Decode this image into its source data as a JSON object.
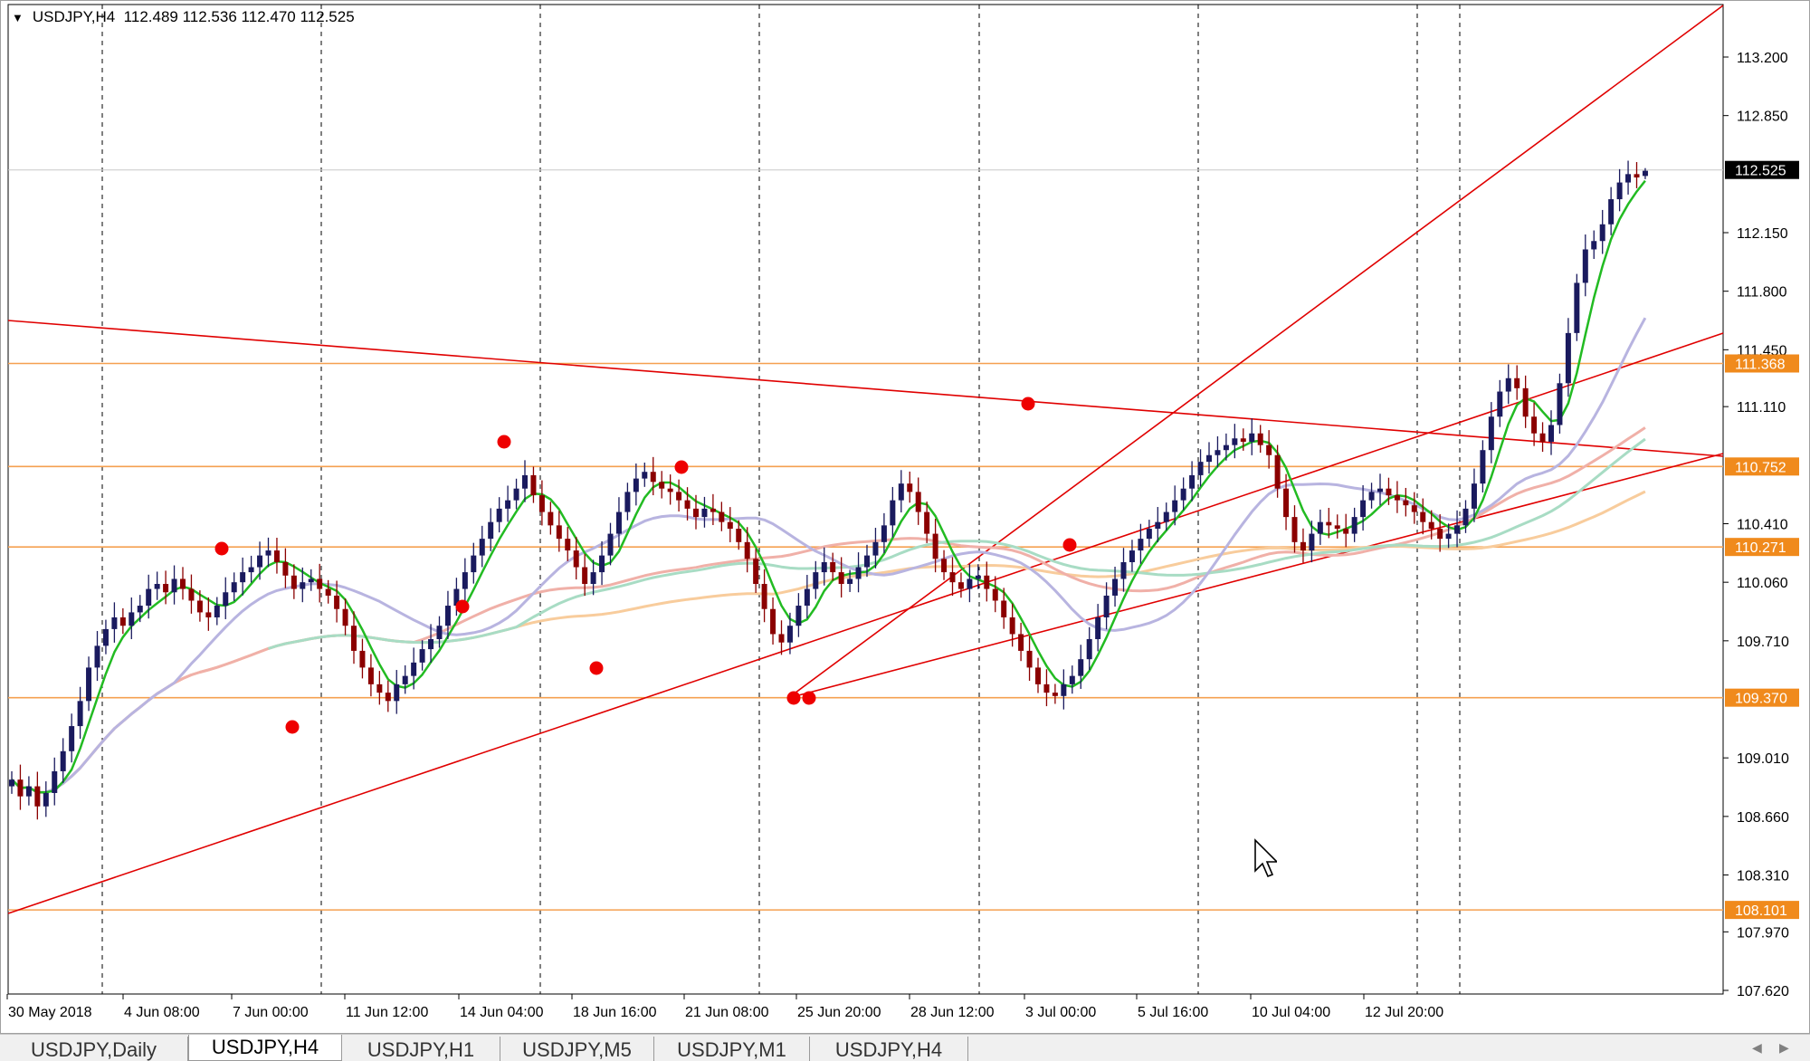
{
  "header": {
    "caret": "▼",
    "symbol": "USDJPY,H4",
    "open": "112.489",
    "high": "112.536",
    "low": "112.470",
    "close": "112.525"
  },
  "price_axis": {
    "ticks": [
      "113.200",
      "112.850",
      "112.150",
      "111.800",
      "111.450",
      "111.110",
      "110.410",
      "110.060",
      "109.710",
      "109.010",
      "108.660",
      "108.310",
      "107.970",
      "107.620"
    ],
    "current_price": "112.525",
    "level_labels": [
      "111.368",
      "110.752",
      "110.271",
      "109.370",
      "108.101"
    ]
  },
  "time_axis": {
    "labels": [
      "30 May 2018",
      "4 Jun 08:00",
      "7 Jun 00:00",
      "11 Jun 12:00",
      "14 Jun 04:00",
      "18 Jun 16:00",
      "21 Jun 08:00",
      "25 Jun 20:00",
      "28 Jun 12:00",
      "3 Jul 00:00",
      "5 Jul 16:00",
      "10 Jul 04:00",
      "12 Jul 20:00"
    ]
  },
  "tabs": [
    {
      "label": "USDJPY,Daily",
      "active": false
    },
    {
      "label": "USDJPY,H4",
      "active": true
    },
    {
      "label": "USDJPY,H1",
      "active": false
    },
    {
      "label": "USDJPY,M5",
      "active": false
    },
    {
      "label": "USDJPY,M1",
      "active": false
    },
    {
      "label": "USDJPY,H4",
      "active": false
    }
  ],
  "tab_scroll": {
    "left_icon": "scroll-left-icon",
    "right_icon": "scroll-right-icon"
  },
  "colors": {
    "background": "#ffffff",
    "bull_candle": "#1a1a5e",
    "bear_candle": "#8b0000",
    "horizontal_level": "#f5a050",
    "level_label_bg": "#f08a1c",
    "trendline": "#e00000",
    "pivot_marker": "#ee0000",
    "ma_fast": "#22bb22",
    "ma_slow_lavender": "#b8b4e0",
    "ma_slow_green": "#a8dcc4",
    "ma_slow_pink": "#f0b0a8",
    "ma_slow_orange": "#f8cc9c",
    "current_price_label_bg": "#000000"
  },
  "chart_data": {
    "type": "candlestick",
    "symbol": "USDJPY",
    "timeframe": "H4",
    "ylim": [
      107.5,
      113.5
    ],
    "horizontal_levels": [
      111.368,
      110.752,
      110.271,
      109.37,
      108.101
    ],
    "current_price": 112.525,
    "last_bar": {
      "open": 112.489,
      "high": 112.536,
      "low": 112.47,
      "close": 112.525
    },
    "close_series": [
      108.88,
      108.78,
      108.84,
      108.72,
      108.8,
      108.93,
      109.05,
      109.2,
      109.35,
      109.55,
      109.68,
      109.78,
      109.85,
      109.8,
      109.88,
      109.92,
      110.02,
      110.05,
      110.0,
      110.08,
      110.02,
      109.95,
      109.88,
      109.85,
      109.92,
      110.0,
      110.06,
      110.12,
      110.15,
      110.22,
      110.25,
      110.18,
      110.1,
      110.02,
      110.06,
      110.08,
      110.02,
      109.98,
      109.9,
      109.8,
      109.65,
      109.55,
      109.45,
      109.4,
      109.35,
      109.45,
      109.5,
      109.58,
      109.66,
      109.72,
      109.8,
      109.92,
      110.02,
      110.12,
      110.22,
      110.32,
      110.42,
      110.5,
      110.55,
      110.62,
      110.7,
      110.58,
      110.48,
      110.4,
      110.32,
      110.25,
      110.15,
      110.05,
      110.12,
      110.22,
      110.35,
      110.48,
      110.6,
      110.68,
      110.72,
      110.66,
      110.62,
      110.6,
      110.55,
      110.5,
      110.45,
      110.5,
      110.48,
      110.42,
      110.38,
      110.3,
      110.2,
      110.05,
      109.9,
      109.75,
      109.7,
      109.8,
      109.92,
      110.02,
      110.12,
      110.18,
      110.12,
      110.05,
      110.08,
      110.15,
      110.22,
      110.3,
      110.4,
      110.55,
      110.65,
      110.6,
      110.48,
      110.35,
      110.2,
      110.12,
      110.06,
      110.02,
      110.08,
      110.1,
      110.02,
      109.95,
      109.85,
      109.75,
      109.65,
      109.55,
      109.45,
      109.4,
      109.38,
      109.45,
      109.5,
      109.6,
      109.72,
      109.85,
      109.98,
      110.08,
      110.18,
      110.25,
      110.32,
      110.38,
      110.42,
      110.48,
      110.55,
      110.62,
      110.7,
      110.78,
      110.82,
      110.85,
      110.88,
      110.92,
      110.9,
      110.95,
      110.88,
      110.82,
      110.62,
      110.45,
      110.3,
      110.25,
      110.35,
      110.42,
      110.4,
      110.38,
      110.35,
      110.45,
      110.55,
      110.6,
      110.62,
      110.58,
      110.55,
      110.52,
      110.48,
      110.42,
      110.38,
      110.32,
      110.35,
      110.4,
      110.5,
      110.65,
      110.85,
      111.05,
      111.2,
      111.28,
      111.22,
      111.05,
      110.95,
      110.9,
      111.0,
      111.25,
      111.55,
      111.85,
      112.05,
      112.1,
      112.2,
      112.35,
      112.45,
      112.5,
      112.48,
      112.52
    ]
  }
}
